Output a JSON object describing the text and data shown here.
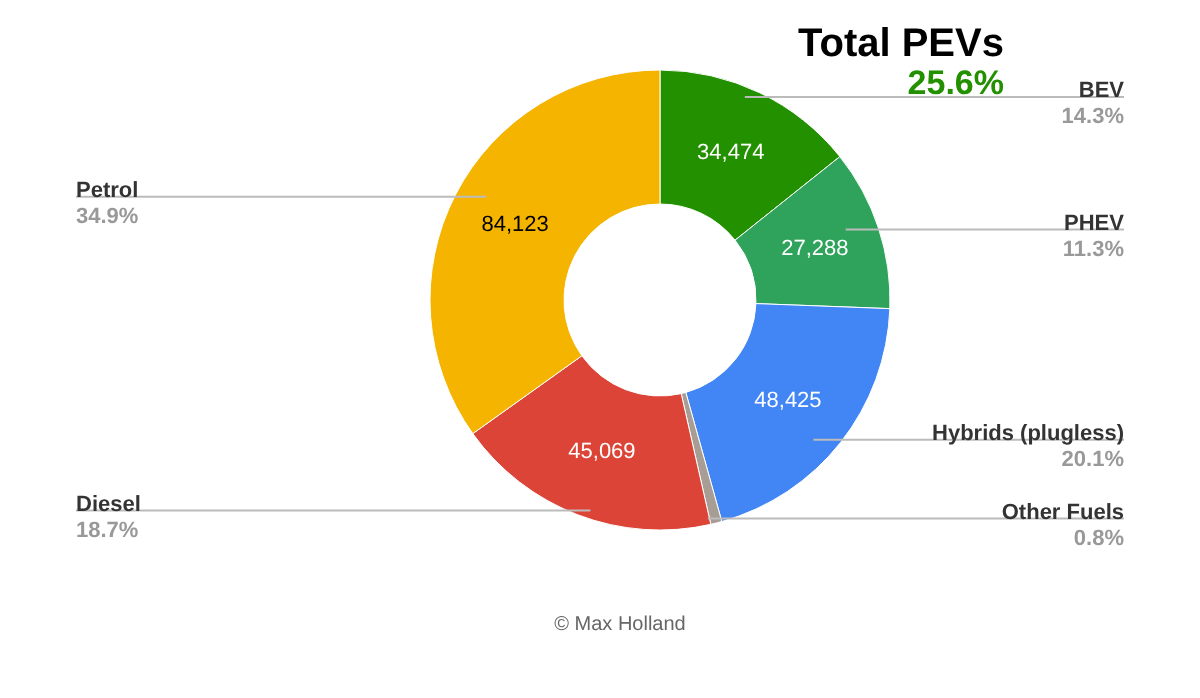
{
  "chart_data": {
    "type": "donut",
    "categories": [
      "BEV",
      "PHEV",
      "Hybrids (plugless)",
      "Other Fuels",
      "Diesel",
      "Petrol"
    ],
    "values": [
      34474,
      27288,
      48425,
      1900,
      45069,
      84123
    ],
    "value_labels": [
      "34,474",
      "27,288",
      "48,425",
      null,
      "45,069",
      "84,123"
    ],
    "colors": [
      "#239000",
      "#2fa35c",
      "#4285f4",
      "#a89d94",
      "#db4437",
      "#f4b400"
    ],
    "annotations": [
      "Total PEVs",
      "25.6%",
      "© Max Holland",
      "14.3%",
      "11.3%",
      "20.1%",
      "0.8%",
      "18.7%",
      "34.9%"
    ]
  }
}
